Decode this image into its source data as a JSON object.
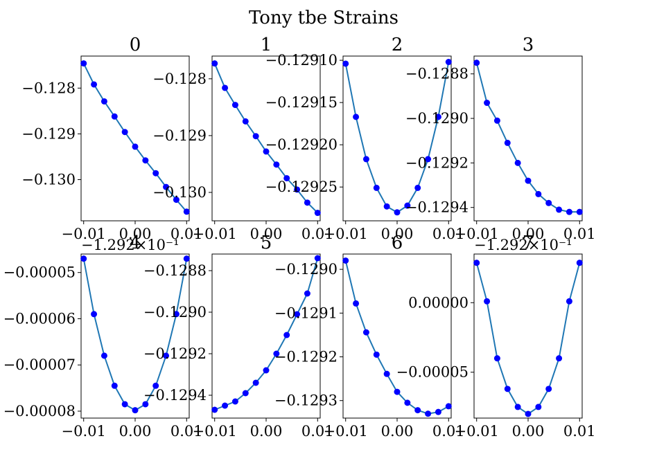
{
  "suptitle": "Tony tbe Strains",
  "chart_data": [
    {
      "type": "scatter+line",
      "title": "0",
      "x": [
        -0.01,
        -0.008,
        -0.006,
        -0.004,
        -0.002,
        0,
        0.002,
        0.004,
        0.006,
        0.008,
        0.01
      ],
      "y": [
        -0.12746,
        -0.12792,
        -0.12829,
        -0.12862,
        -0.12896,
        -0.12928,
        -0.12958,
        -0.12986,
        -0.13016,
        -0.13044,
        -0.1307
      ],
      "xlim": [
        -0.0105,
        0.0105
      ],
      "ylim": [
        -0.1309,
        -0.1273
      ],
      "xticks": [
        -0.01,
        0,
        0.01
      ],
      "xticklabels": [
        "−0.01",
        "0.00",
        "0.01"
      ],
      "yticks": [
        -0.128,
        -0.129,
        -0.13
      ],
      "yticklabels": [
        "−0.128",
        "−0.129",
        "−0.130"
      ],
      "offset": ""
    },
    {
      "type": "scatter+line",
      "title": "1",
      "x": [
        -0.01,
        -0.008,
        -0.006,
        -0.004,
        -0.002,
        0,
        0.002,
        0.004,
        0.006,
        0.008,
        0.01
      ],
      "y": [
        -0.12773,
        -0.12816,
        -0.12846,
        -0.12875,
        -0.12901,
        -0.12928,
        -0.12951,
        -0.12975,
        -0.12995,
        -0.13018,
        -0.13036
      ],
      "xlim": [
        -0.0105,
        0.0105
      ],
      "ylim": [
        -0.1305,
        -0.1276
      ],
      "xticks": [
        -0.01,
        0,
        0.01
      ],
      "xticklabels": [
        "−0.01",
        "0.00",
        "0.01"
      ],
      "yticks": [
        -0.128,
        -0.129,
        -0.13
      ],
      "yticklabels": [
        "−0.128",
        "−0.129",
        "−0.130"
      ],
      "offset": ""
    },
    {
      "type": "scatter+line",
      "title": "2",
      "x": [
        -0.01,
        -0.008,
        -0.006,
        -0.004,
        -0.002,
        0,
        0.002,
        0.004,
        0.006,
        0.008,
        0.01
      ],
      "y": [
        -0.129104,
        -0.129167,
        -0.129217,
        -0.129251,
        -0.129273,
        -0.12928,
        -0.129272,
        -0.129251,
        -0.129217,
        -0.129167,
        -0.129102
      ],
      "xlim": [
        -0.0105,
        0.0105
      ],
      "ylim": [
        -0.12929,
        -0.129095
      ],
      "xticks": [
        -0.01,
        0,
        0.01
      ],
      "xticklabels": [
        "−0.01",
        "0.00",
        "0.01"
      ],
      "yticks": [
        -0.1291,
        -0.12915,
        -0.1292,
        -0.12925
      ],
      "yticklabels": [
        "−0.12910",
        "−0.12915",
        "−0.12920",
        "−0.12925"
      ],
      "offset": ""
    },
    {
      "type": "scatter+line",
      "title": "3",
      "x": [
        -0.01,
        -0.008,
        -0.006,
        -0.004,
        -0.002,
        0,
        0.002,
        0.004,
        0.006,
        0.008,
        0.01
      ],
      "y": [
        -0.12875,
        -0.12893,
        -0.12901,
        -0.12911,
        -0.1292,
        -0.12928,
        -0.12934,
        -0.12938,
        -0.12941,
        -0.12942,
        -0.12942
      ],
      "xlim": [
        -0.0105,
        0.0105
      ],
      "ylim": [
        -0.12946,
        -0.12872
      ],
      "xticks": [
        -0.01,
        0,
        0.01
      ],
      "xticklabels": [
        "−0.01",
        "0.00",
        "0.01"
      ],
      "yticks": [
        -0.1288,
        -0.129,
        -0.1292,
        -0.1294
      ],
      "yticklabels": [
        "−0.1288",
        "−0.1290",
        "−0.1292",
        "−0.1294"
      ],
      "offset": ""
    },
    {
      "type": "scatter+line",
      "title": "4",
      "x": [
        -0.01,
        -0.008,
        -0.006,
        -0.004,
        -0.002,
        0,
        0.002,
        0.004,
        0.006,
        0.008,
        0.01
      ],
      "y": [
        -4.7e-05,
        -5.9e-05,
        -6.8e-05,
        -7.45e-05,
        -7.85e-05,
        -7.98e-05,
        -7.85e-05,
        -7.45e-05,
        -6.8e-05,
        -5.9e-05,
        -4.7e-05
      ],
      "xlim": [
        -0.0105,
        0.0105
      ],
      "ylim": [
        -8.15e-05,
        -4.6e-05
      ],
      "xticks": [
        -0.01,
        0,
        0.01
      ],
      "xticklabels": [
        "−0.01",
        "0.00",
        "0.01"
      ],
      "yticks": [
        -5e-05,
        -6e-05,
        -7e-05,
        -8e-05
      ],
      "yticklabels": [
        "−0.00005",
        "−0.00006",
        "−0.00007",
        "−0.00008"
      ],
      "offset": "−1.292×10⁻¹"
    },
    {
      "type": "scatter+line",
      "title": "5",
      "x": [
        -0.01,
        -0.008,
        -0.006,
        -0.004,
        -0.002,
        0,
        0.002,
        0.004,
        0.006,
        0.008,
        0.01
      ],
      "y": [
        -0.12947,
        -0.12945,
        -0.12943,
        -0.12939,
        -0.12934,
        -0.12928,
        -0.1292,
        -0.12911,
        -0.12901,
        -0.12891,
        -0.12874
      ],
      "xlim": [
        -0.0105,
        0.0105
      ],
      "ylim": [
        -0.12951,
        -0.12872
      ],
      "xticks": [
        -0.01,
        0,
        0.01
      ],
      "xticklabels": [
        "−0.01",
        "0.00",
        "0.01"
      ],
      "yticks": [
        -0.1288,
        -0.129,
        -0.1292,
        -0.1294
      ],
      "yticklabels": [
        "−0.1288",
        "−0.1290",
        "−0.1292",
        "−0.1294"
      ],
      "offset": ""
    },
    {
      "type": "scatter+line",
      "title": "6",
      "x": [
        -0.01,
        -0.008,
        -0.006,
        -0.004,
        -0.002,
        0,
        0.002,
        0.004,
        0.006,
        0.008,
        0.01
      ],
      "y": [
        -0.12898,
        -0.129078,
        -0.129144,
        -0.129195,
        -0.129239,
        -0.12928,
        -0.129305,
        -0.129322,
        -0.12933,
        -0.129326,
        -0.129313
      ],
      "xlim": [
        -0.0105,
        0.0105
      ],
      "ylim": [
        -0.12934,
        -0.128965
      ],
      "xticks": [
        -0.01,
        0,
        0.01
      ],
      "xticklabels": [
        "−0.01",
        "0.00",
        "0.01"
      ],
      "yticks": [
        -0.129,
        -0.1291,
        -0.1292,
        -0.1293
      ],
      "yticklabels": [
        "−0.1290",
        "−0.1291",
        "−0.1292",
        "−0.1293"
      ],
      "offset": ""
    },
    {
      "type": "scatter+line",
      "title": "7",
      "x": [
        -0.01,
        -0.008,
        -0.006,
        -0.004,
        -0.002,
        0,
        0.002,
        0.004,
        0.006,
        0.008,
        0.01
      ],
      "y": [
        2.87e-05,
        1e-06,
        -4e-05,
        -6.2e-05,
        -7.5e-05,
        -8e-05,
        -7.5e-05,
        -6.2e-05,
        -4e-05,
        1e-06,
        2.87e-05
      ],
      "xlim": [
        -0.0105,
        0.0105
      ],
      "ylim": [
        -8.3e-05,
        3.5e-05
      ],
      "xticks": [
        -0.01,
        0,
        0.01
      ],
      "xticklabels": [
        "−0.01",
        "0.00",
        "0.01"
      ],
      "yticks": [
        0,
        -5e-05
      ],
      "yticklabels": [
        "0.00000",
        "−0.00005"
      ],
      "offset": "−1.292×10⁻¹"
    }
  ],
  "colors": {
    "line": "#1f77b4",
    "marker": "#0000ff",
    "axes": "#000000"
  }
}
